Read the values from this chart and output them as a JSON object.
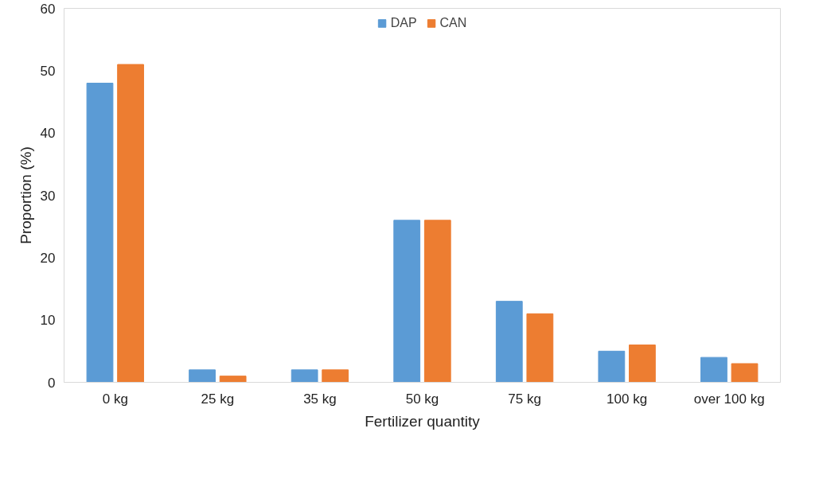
{
  "chart_data": {
    "type": "bar",
    "xlabel": "Fertilizer quantity",
    "ylabel": "Proportion (%)",
    "categories": [
      "0 kg",
      "25 kg",
      "35 kg",
      "50 kg",
      "75 kg",
      "100 kg",
      "over 100 kg"
    ],
    "series": [
      {
        "name": "DAP",
        "color": "#5b9bd5",
        "values": [
          48,
          2,
          2,
          26,
          13,
          5,
          4
        ]
      },
      {
        "name": "CAN",
        "color": "#ed7d31",
        "values": [
          51,
          1,
          2,
          26,
          11,
          6,
          3
        ]
      }
    ],
    "ylim": [
      0,
      60
    ],
    "yticks": [
      0,
      10,
      20,
      30,
      40,
      50,
      60
    ],
    "grid": false,
    "legend": "top"
  }
}
